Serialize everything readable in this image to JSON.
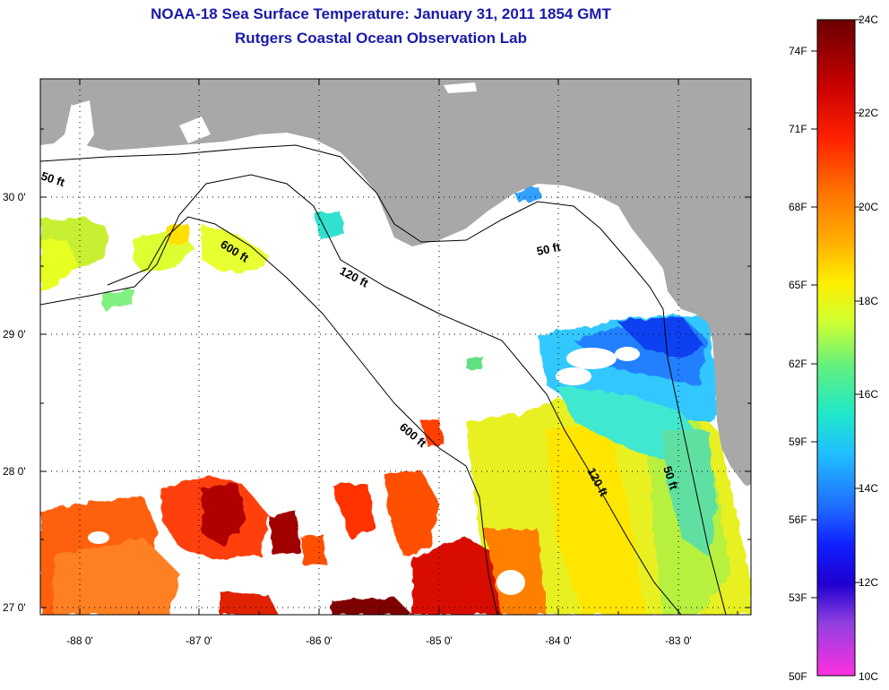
{
  "title": {
    "line1": "NOAA-18 Sea Surface Temperature:  January 31, 2011 1854 GMT",
    "line2": "Rutgers Coastal Ocean Observation Lab"
  },
  "axes": {
    "lat_labels": [
      "30 0'",
      "29 0'",
      "28 0'",
      "27 0'"
    ],
    "lon_labels": [
      "-88 0'",
      "-87 0'",
      "-86 0'",
      "-85 0'",
      "-84 0'",
      "-83 0'"
    ]
  },
  "contours": [
    "50 ft",
    "120 ft",
    "600 ft"
  ],
  "contour_labels": [
    "50 ft",
    "600 ft",
    "120 ft",
    "50 ft",
    "600 ft",
    "120 ft",
    "50 ft"
  ],
  "colorbar": {
    "fahrenheit": [
      "74F",
      "71F",
      "68F",
      "65F",
      "62F",
      "59F",
      "56F",
      "53F",
      "50F"
    ],
    "celsius": [
      "24C",
      "22C",
      "20C",
      "18C",
      "16C",
      "14C",
      "12C",
      "10C"
    ],
    "colors": [
      "#7a0000",
      "#cc0000",
      "#ff3000",
      "#ff8a00",
      "#ffdd00",
      "#d8ff20",
      "#60f070",
      "#20e0c8",
      "#20a0ff",
      "#1040ff",
      "#1000e0",
      "#8040e0",
      "#ff40e0"
    ]
  },
  "colors": {
    "land": "#a8a8a8",
    "ocean_nodata": "#ffffff",
    "title": "#1a1aa8"
  }
}
